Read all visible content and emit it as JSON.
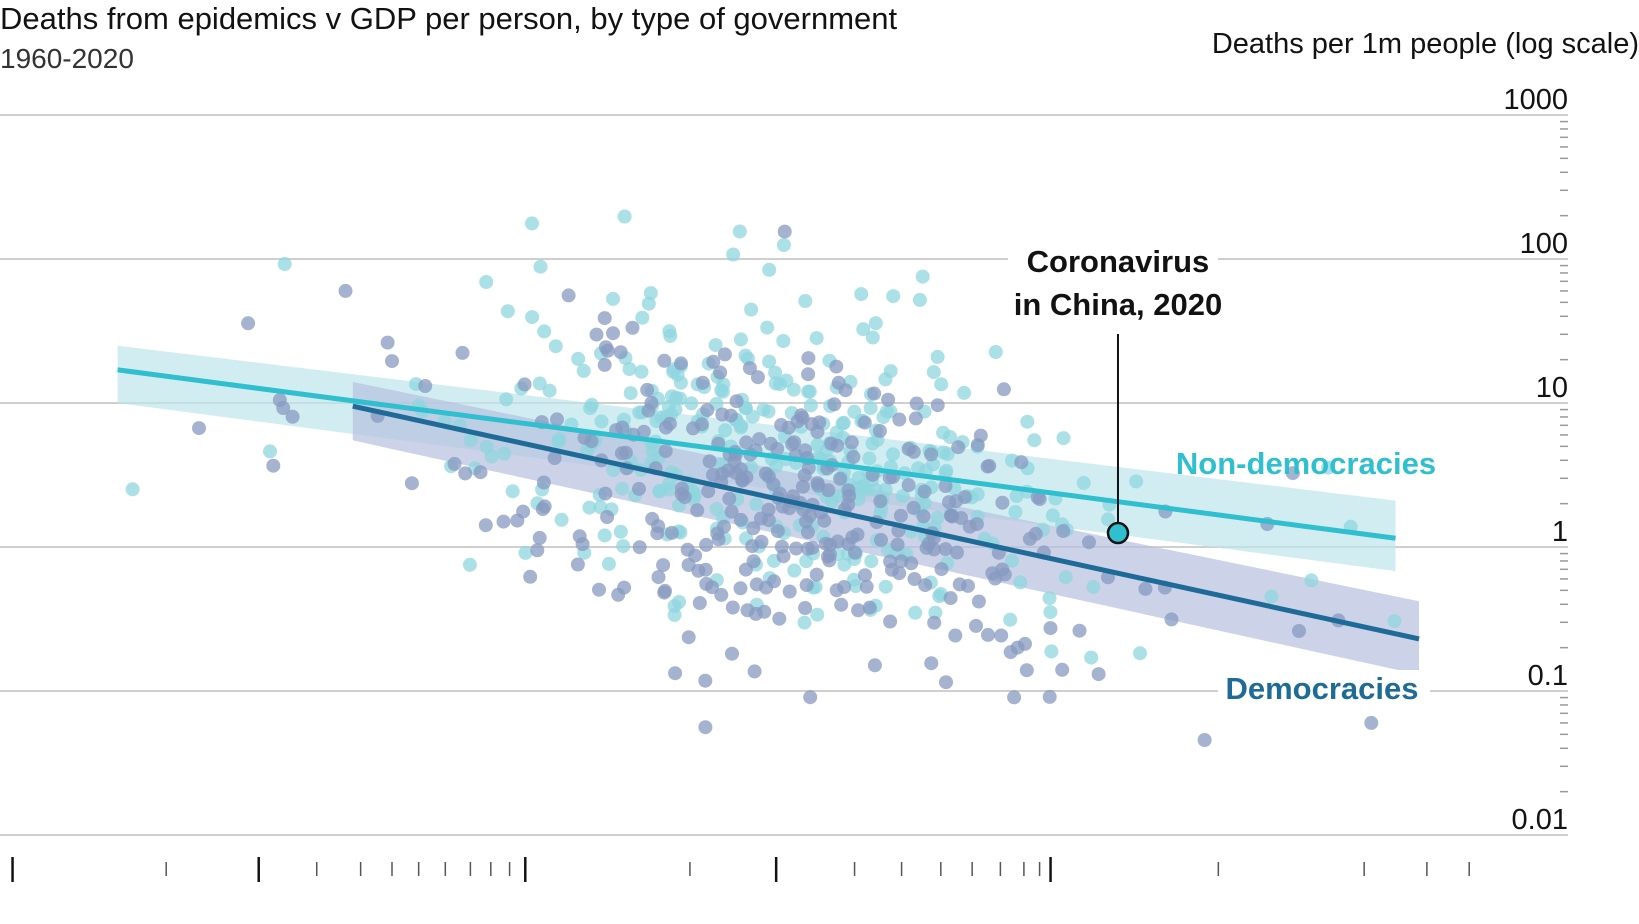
{
  "chart_data": {
    "type": "scatter",
    "title": "Deaths from epidemics v GDP per person, by type of government",
    "subtitle": "1960-2020",
    "ylabel": "Deaths per 1m people (log scale)",
    "xlabel": "",
    "y_scale": "log",
    "ylim": [
      0.01,
      1000
    ],
    "y_ticks": [
      {
        "value": 1000,
        "label": "1000"
      },
      {
        "value": 100,
        "label": "100"
      },
      {
        "value": 10,
        "label": "10"
      },
      {
        "value": 1,
        "label": "1"
      },
      {
        "value": 0.1,
        "label": "0.1"
      },
      {
        "value": 0.01,
        "label": "0.01"
      }
    ],
    "xlim": [
      0,
      100
    ],
    "x_ticks_major": [
      0.8,
      16.5,
      33.5,
      49.5,
      67
    ],
    "x_ticks_minor": [
      10.6,
      20.2,
      23,
      25,
      26.7,
      28.4,
      30,
      31.3,
      32.5,
      44,
      54.5,
      57.5,
      60,
      62,
      63.8,
      65.3,
      66.3,
      77.7,
      87,
      91,
      93.7
    ],
    "colors": {
      "non_democracies": "#2fbfcf",
      "non_democracies_points": "#8fd6df",
      "non_democracies_band": "#bde6ec",
      "democracies": "#1f6b98",
      "democracies_points": "#8799c0",
      "democracies_band": "#b7c1de",
      "grid": "#cfcfcf"
    },
    "series": [
      {
        "name": "Non-democracies",
        "trend": [
          [
            7.5,
            17
          ],
          [
            89,
            1.15
          ]
        ],
        "band": {
          "x": [
            7.5,
            89
          ],
          "upper": [
            25,
            2.1
          ],
          "lower": [
            10,
            0.68
          ]
        }
      },
      {
        "name": "Democracies",
        "trend": [
          [
            22.5,
            9.5
          ],
          [
            90.5,
            0.23
          ]
        ],
        "band": {
          "x": [
            22.5,
            90.5
          ],
          "upper": [
            14,
            0.42
          ],
          "lower": [
            5.5,
            0.13
          ]
        }
      }
    ],
    "annotation": {
      "line1": "Coronavirus",
      "line2": "in China, 2020",
      "x": 71.3,
      "y": 1.25
    }
  }
}
